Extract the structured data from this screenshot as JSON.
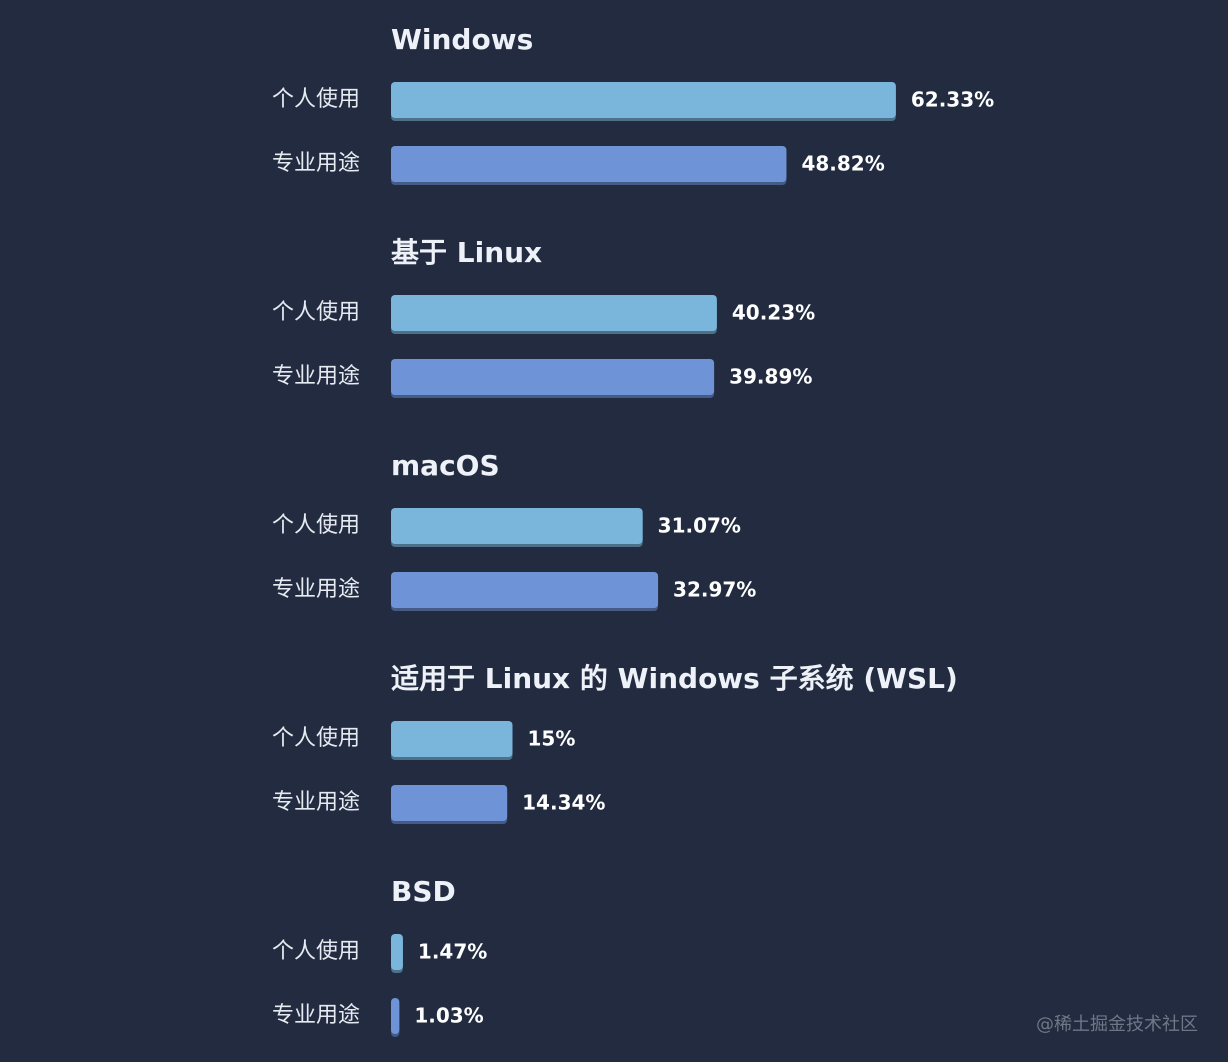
{
  "chart_data": {
    "type": "bar",
    "orientation": "horizontal",
    "value_unit": "%",
    "series_labels": [
      "个人使用",
      "专业用途"
    ],
    "colors": {
      "personal": "#7ab6db",
      "professional": "#6f93d7"
    },
    "groups": [
      {
        "title": "Windows",
        "values": [
          62.33,
          48.82
        ],
        "value_labels": [
          "62.33%",
          "48.82%"
        ]
      },
      {
        "title": "基于 Linux",
        "values": [
          40.23,
          39.89
        ],
        "value_labels": [
          "40.23%",
          "39.89%"
        ]
      },
      {
        "title": "macOS",
        "values": [
          31.07,
          32.97
        ],
        "value_labels": [
          "31.07%",
          "32.97%"
        ]
      },
      {
        "title": "适用于 Linux 的 Windows 子系统 (WSL)",
        "values": [
          15,
          14.34
        ],
        "value_labels": [
          "15%",
          "14.34%"
        ]
      },
      {
        "title": "BSD",
        "values": [
          1.47,
          1.03
        ],
        "value_labels": [
          "1.47%",
          "1.03%"
        ]
      }
    ]
  },
  "watermark": "@稀土掘金技术社区"
}
